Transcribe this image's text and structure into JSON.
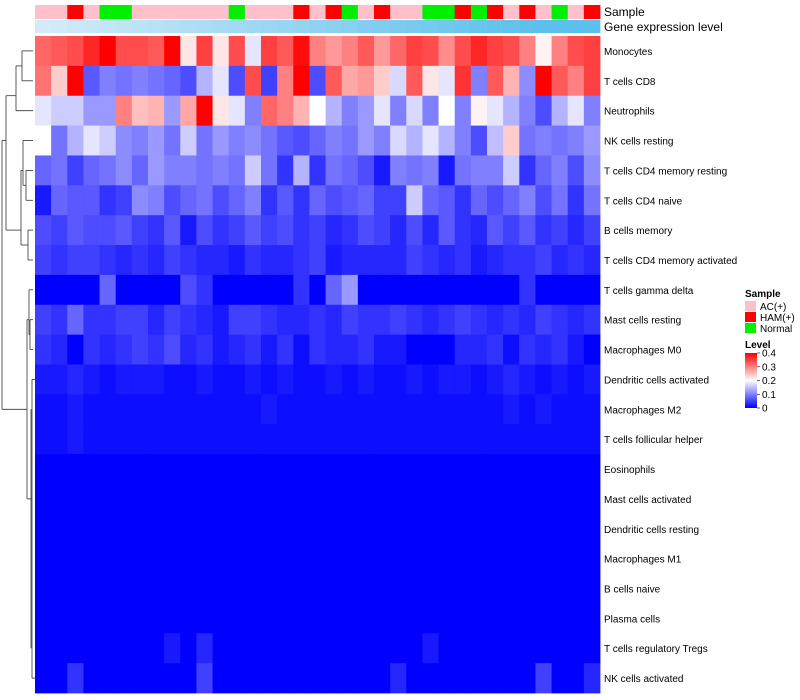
{
  "chart_data": {
    "type": "heatmap",
    "title": "",
    "annotations": [
      {
        "name": "Sample",
        "type": "categorical"
      },
      {
        "name": "Gene expression level",
        "type": "continuous"
      }
    ],
    "sample_groups": [
      "AC(+)",
      "AC(+)",
      "HAM(+)",
      "AC(+)",
      "Normal",
      "Normal",
      "AC(+)",
      "AC(+)",
      "AC(+)",
      "AC(+)",
      "AC(+)",
      "AC(+)",
      "Normal",
      "AC(+)",
      "AC(+)",
      "AC(+)",
      "HAM(+)",
      "AC(+)",
      "HAM(+)",
      "Normal",
      "AC(+)",
      "HAM(+)",
      "AC(+)",
      "AC(+)",
      "Normal",
      "Normal",
      "HAM(+)",
      "Normal",
      "HAM(+)",
      "AC(+)",
      "HAM(+)",
      "AC(+)",
      "Normal",
      "AC(+)",
      "HAM(+)"
    ],
    "gene_expression_level": [
      0.1,
      0.13,
      0.16,
      0.19,
      0.22,
      0.25,
      0.28,
      0.31,
      0.34,
      0.37,
      0.4,
      0.43,
      0.46,
      0.49,
      0.52,
      0.55,
      0.58,
      0.61,
      0.64,
      0.67,
      0.7,
      0.72,
      0.75,
      0.78,
      0.81,
      0.84,
      0.87,
      0.9,
      0.92,
      0.95,
      0.97,
      1,
      1,
      1,
      1
    ],
    "rows": [
      "Monocytes",
      "T cells CD8",
      "Neutrophils",
      "NK cells resting",
      "T cells CD4 memory resting",
      "T cells CD4 naive",
      "B cells memory",
      "T cells CD4 memory activated",
      "T cells gamma delta",
      "Mast cells resting",
      "Macrophages M0",
      "Dendritic cells activated",
      "Macrophages M2",
      "T cells follicular helper",
      "Eosinophils",
      "Mast cells activated",
      "Dendritic cells resting",
      "Macrophages M1",
      "B cells naive",
      "Plasma cells",
      "T cells regulatory  Tregs",
      "NK cells activated"
    ],
    "values": [
      [
        0.32,
        0.33,
        0.34,
        0.37,
        0.4,
        0.34,
        0.34,
        0.33,
        0.4,
        0.22,
        0.35,
        0.22,
        0.34,
        0.18,
        0.35,
        0.33,
        0.39,
        0.3,
        0.28,
        0.3,
        0.33,
        0.28,
        0.32,
        0.35,
        0.34,
        0.29,
        0.34,
        0.37,
        0.35,
        0.34,
        0.3,
        0.21,
        0.3,
        0.34,
        0.35
      ],
      [
        0.31,
        0.24,
        0.4,
        0.07,
        0.1,
        0.09,
        0.1,
        0.09,
        0.08,
        0.06,
        0.14,
        0.18,
        0.06,
        0.34,
        0.05,
        0.3,
        0.45,
        0.06,
        0.33,
        0.27,
        0.28,
        0.24,
        0.17,
        0.33,
        0.22,
        0.18,
        0.36,
        0.1,
        0.33,
        0.26,
        0.11,
        0.4,
        0.33,
        0.3,
        0.35
      ],
      [
        0.18,
        0.16,
        0.16,
        0.12,
        0.12,
        0.3,
        0.25,
        0.26,
        0.12,
        0.27,
        0.42,
        0.22,
        0.18,
        0.1,
        0.32,
        0.3,
        0.26,
        0.2,
        0.14,
        0.1,
        0.12,
        0.18,
        0.1,
        0.17,
        0.1,
        0.2,
        0.1,
        0.21,
        0.18,
        0.14,
        0.1,
        0.06,
        0.14,
        0.18,
        0.1
      ],
      [
        0.2,
        0.09,
        0.14,
        0.18,
        0.16,
        0.11,
        0.1,
        0.12,
        0.09,
        0.16,
        0.09,
        0.12,
        0.1,
        0.11,
        0.09,
        0.07,
        0.06,
        0.08,
        0.1,
        0.09,
        0.12,
        0.1,
        0.17,
        0.14,
        0.18,
        0.14,
        0.1,
        0.06,
        0.15,
        0.24,
        0.09,
        0.1,
        0.09,
        0.1,
        0.12
      ],
      [
        0.08,
        0.09,
        0.05,
        0.08,
        0.09,
        0.11,
        0.08,
        0.12,
        0.1,
        0.1,
        0.09,
        0.1,
        0.09,
        0.16,
        0.09,
        0.04,
        0.14,
        0.04,
        0.09,
        0.08,
        0.06,
        0.02,
        0.1,
        0.09,
        0.1,
        0.02,
        0.09,
        0.1,
        0.1,
        0.16,
        0.04,
        0.08,
        0.1,
        0.06,
        0.11
      ],
      [
        0.02,
        0.08,
        0.07,
        0.07,
        0.04,
        0.05,
        0.11,
        0.1,
        0.06,
        0.08,
        0.09,
        0.06,
        0.08,
        0.1,
        0.04,
        0.07,
        0.04,
        0.08,
        0.06,
        0.07,
        0.08,
        0.05,
        0.05,
        0.16,
        0.08,
        0.07,
        0.04,
        0.08,
        0.06,
        0.08,
        0.1,
        0.06,
        0.09,
        0.04,
        0.09
      ],
      [
        0.06,
        0.05,
        0.07,
        0.06,
        0.06,
        0.07,
        0.05,
        0.04,
        0.07,
        0.02,
        0.06,
        0.04,
        0.05,
        0.07,
        0.05,
        0.06,
        0.04,
        0.05,
        0.03,
        0.04,
        0.06,
        0.05,
        0.03,
        0.06,
        0.03,
        0.07,
        0.04,
        0.03,
        0.07,
        0.05,
        0.07,
        0.04,
        0.05,
        0.03,
        0.05
      ],
      [
        0.05,
        0.04,
        0.05,
        0.05,
        0.04,
        0.03,
        0.04,
        0.03,
        0.05,
        0.04,
        0.03,
        0.03,
        0.02,
        0.04,
        0.03,
        0.03,
        0.04,
        0.05,
        0.02,
        0.03,
        0.03,
        0.03,
        0.03,
        0.05,
        0.04,
        0.03,
        0.04,
        0.02,
        0.03,
        0.04,
        0.04,
        0.05,
        0.03,
        0.04,
        0.03
      ],
      [
        0.0,
        0.0,
        0.0,
        0.0,
        0.08,
        0.0,
        0.0,
        0.0,
        0.0,
        0.06,
        0.04,
        0.0,
        0.0,
        0.0,
        0.0,
        0.0,
        0.04,
        0.0,
        0.08,
        0.12,
        0.0,
        0.0,
        0.0,
        0.0,
        0.0,
        0.0,
        0.0,
        0.0,
        0.0,
        0.0,
        0.04,
        0.0,
        0.0,
        0.0,
        0.0
      ],
      [
        0.05,
        0.04,
        0.08,
        0.04,
        0.04,
        0.05,
        0.05,
        0.03,
        0.05,
        0.04,
        0.03,
        0.02,
        0.05,
        0.05,
        0.04,
        0.03,
        0.03,
        0.04,
        0.03,
        0.05,
        0.04,
        0.04,
        0.05,
        0.04,
        0.03,
        0.04,
        0.05,
        0.04,
        0.03,
        0.04,
        0.03,
        0.05,
        0.04,
        0.03,
        0.04
      ],
      [
        0.04,
        0.03,
        0.0,
        0.04,
        0.03,
        0.04,
        0.05,
        0.04,
        0.06,
        0.03,
        0.04,
        0.02,
        0.03,
        0.04,
        0.02,
        0.04,
        0.01,
        0.04,
        0.03,
        0.03,
        0.04,
        0.02,
        0.02,
        0.0,
        0.0,
        0.0,
        0.03,
        0.03,
        0.04,
        0.01,
        0.04,
        0.03,
        0.04,
        0.02,
        0.0
      ],
      [
        0.02,
        0.02,
        0.03,
        0.02,
        0.01,
        0.02,
        0.02,
        0.02,
        0.01,
        0.01,
        0.02,
        0.01,
        0.01,
        0.02,
        0.01,
        0.02,
        0.01,
        0.01,
        0.02,
        0.01,
        0.02,
        0.01,
        0.01,
        0.02,
        0.01,
        0.02,
        0.02,
        0.01,
        0.02,
        0.03,
        0.02,
        0.01,
        0.02,
        0.01,
        0.02
      ],
      [
        0.01,
        0.01,
        0.02,
        0.01,
        0.01,
        0.01,
        0.01,
        0.01,
        0.01,
        0.01,
        0.01,
        0.01,
        0.01,
        0.01,
        0.02,
        0.01,
        0.01,
        0.01,
        0.01,
        0.01,
        0.01,
        0.01,
        0.01,
        0.01,
        0.01,
        0.01,
        0.01,
        0.01,
        0.01,
        0.02,
        0.01,
        0.02,
        0.01,
        0.01,
        0.01
      ],
      [
        0.01,
        0.01,
        0.02,
        0.01,
        0.01,
        0.01,
        0.01,
        0.01,
        0.01,
        0.01,
        0.01,
        0.01,
        0.01,
        0.01,
        0.01,
        0.01,
        0.01,
        0.01,
        0.01,
        0.01,
        0.01,
        0.01,
        0.01,
        0.01,
        0.01,
        0.01,
        0.01,
        0.01,
        0.01,
        0.01,
        0.01,
        0.01,
        0.01,
        0.01,
        0.01
      ],
      [
        0.0,
        0.0,
        0.0,
        0.0,
        0.0,
        0.0,
        0.0,
        0.0,
        0.0,
        0.0,
        0.0,
        0.0,
        0.0,
        0.0,
        0.0,
        0.0,
        0.0,
        0.0,
        0.0,
        0.0,
        0.0,
        0.0,
        0.0,
        0.0,
        0.0,
        0.0,
        0.0,
        0.0,
        0.0,
        0.0,
        0.0,
        0.0,
        0.0,
        0.0,
        0.0
      ],
      [
        0.0,
        0.0,
        0.0,
        0.0,
        0.0,
        0.0,
        0.0,
        0.0,
        0.0,
        0.0,
        0.0,
        0.0,
        0.0,
        0.0,
        0.0,
        0.0,
        0.0,
        0.0,
        0.0,
        0.0,
        0.0,
        0.0,
        0.0,
        0.0,
        0.0,
        0.0,
        0.0,
        0.0,
        0.0,
        0.0,
        0.0,
        0.0,
        0.0,
        0.0,
        0.0
      ],
      [
        0.0,
        0.0,
        0.0,
        0.0,
        0.0,
        0.0,
        0.0,
        0.0,
        0.0,
        0.0,
        0.0,
        0.0,
        0.0,
        0.0,
        0.0,
        0.0,
        0.0,
        0.0,
        0.0,
        0.0,
        0.0,
        0.0,
        0.0,
        0.0,
        0.0,
        0.0,
        0.0,
        0.0,
        0.0,
        0.0,
        0.0,
        0.0,
        0.0,
        0.0,
        0.0
      ],
      [
        0.0,
        0.0,
        0.0,
        0.0,
        0.0,
        0.0,
        0.0,
        0.0,
        0.0,
        0.0,
        0.0,
        0.0,
        0.0,
        0.0,
        0.0,
        0.0,
        0.0,
        0.0,
        0.0,
        0.0,
        0.0,
        0.0,
        0.0,
        0.0,
        0.0,
        0.0,
        0.0,
        0.0,
        0.0,
        0.0,
        0.0,
        0.0,
        0.0,
        0.0,
        0.0
      ],
      [
        0.0,
        0.0,
        0.0,
        0.0,
        0.0,
        0.0,
        0.0,
        0.0,
        0.0,
        0.0,
        0.0,
        0.0,
        0.0,
        0.0,
        0.0,
        0.0,
        0.0,
        0.0,
        0.0,
        0.0,
        0.0,
        0.0,
        0.0,
        0.0,
        0.0,
        0.0,
        0.0,
        0.0,
        0.0,
        0.0,
        0.0,
        0.0,
        0.0,
        0.0,
        0.0
      ],
      [
        0.0,
        0.0,
        0.0,
        0.0,
        0.0,
        0.0,
        0.0,
        0.0,
        0.0,
        0.0,
        0.0,
        0.0,
        0.0,
        0.0,
        0.0,
        0.0,
        0.0,
        0.0,
        0.0,
        0.0,
        0.0,
        0.0,
        0.0,
        0.0,
        0.0,
        0.0,
        0.0,
        0.0,
        0.0,
        0.0,
        0.0,
        0.0,
        0.0,
        0.0,
        0.0
      ],
      [
        0.0,
        0.0,
        0.0,
        0.0,
        0.0,
        0.0,
        0.0,
        0.0,
        0.02,
        0.0,
        0.03,
        0.0,
        0.0,
        0.0,
        0.0,
        0.0,
        0.0,
        0.0,
        0.0,
        0.0,
        0.0,
        0.0,
        0.0,
        0.0,
        0.02,
        0.0,
        0.0,
        0.0,
        0.0,
        0.0,
        0.0,
        0.0,
        0.0,
        0.0,
        0.0
      ],
      [
        0.0,
        0.0,
        0.04,
        0.0,
        0.0,
        0.0,
        0.0,
        0.0,
        0.0,
        0.0,
        0.05,
        0.0,
        0.0,
        0.0,
        0.0,
        0.0,
        0.0,
        0.0,
        0.0,
        0.0,
        0.0,
        0.0,
        0.03,
        0.0,
        0.0,
        0.0,
        0.0,
        0.0,
        0.0,
        0.0,
        0.0,
        0.05,
        0.0,
        0.0,
        0.03
      ]
    ],
    "color_scale": {
      "min": 0,
      "max": 0.4,
      "low": "#0000FF",
      "mid": "#FFFFFF",
      "high": "#FF0000",
      "midpoint": 0.2
    },
    "legend": {
      "sample_title": "Sample",
      "sample_entries": [
        {
          "label": "AC(+)",
          "color": "#FFC0CB"
        },
        {
          "label": "HAM(+)",
          "color": "#FF0000"
        },
        {
          "label": "Normal",
          "color": "#00EE00"
        }
      ],
      "level_title": "Level",
      "level_ticks": [
        "0.4",
        "0.3",
        "0.2",
        "0.1",
        "0"
      ],
      "placement": "right"
    },
    "gene_expression_colors": {
      "low": "#E0F0FA",
      "high": "#5BC0EB"
    }
  }
}
